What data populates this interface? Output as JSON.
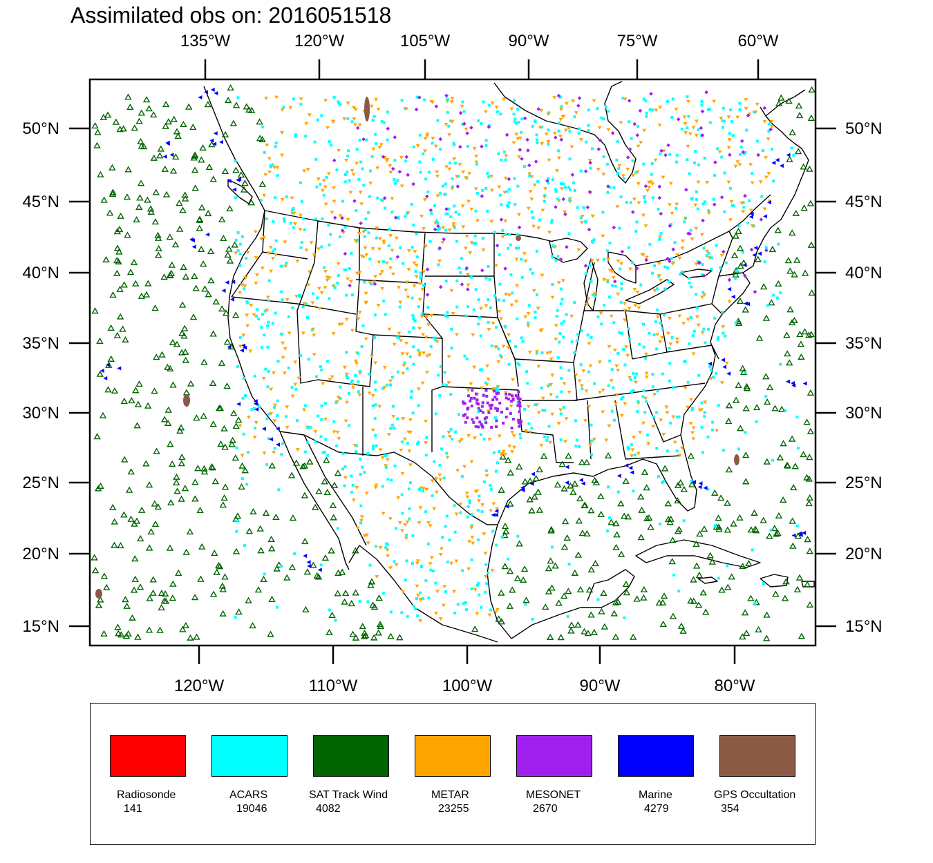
{
  "title": "Assimilated obs on: 2016051518",
  "map": {
    "top_lon_ticks": [
      "135°W",
      "120°W",
      "105°W",
      "90°W",
      "75°W",
      "60°W"
    ],
    "bottom_lon_ticks": [
      "120°W",
      "110°W",
      "100°W",
      "90°W",
      "80°W"
    ],
    "lat_ticks": [
      "50°N",
      "45°N",
      "40°N",
      "35°N",
      "30°N",
      "25°N",
      "20°N",
      "15°N"
    ]
  },
  "colors": {
    "radiosonde": "#ff0000",
    "acars": "#00ffff",
    "sat_track_wind": "#006400",
    "metar": "#ffa500",
    "mesonet": "#a020f0",
    "marine": "#0000ff",
    "gps": "#8b5a45"
  },
  "legend": [
    {
      "key": "radiosonde",
      "label": "Radiosonde",
      "count": "141",
      "color": "#ff0000"
    },
    {
      "key": "acars",
      "label": "ACARS",
      "count": "19046",
      "color": "#00ffff"
    },
    {
      "key": "sat_track_wind",
      "label": "SAT Track Wind",
      "count": "4082",
      "color": "#006400"
    },
    {
      "key": "metar",
      "label": "METAR",
      "count": "23255",
      "color": "#ffa500"
    },
    {
      "key": "mesonet",
      "label": "MESONET",
      "count": "2670",
      "color": "#a020f0"
    },
    {
      "key": "marine",
      "label": "Marine",
      "count": "4279",
      "color": "#0000ff"
    },
    {
      "key": "gps",
      "label": "GPS Occultation",
      "count": "354",
      "color": "#8b5a45"
    }
  ]
}
